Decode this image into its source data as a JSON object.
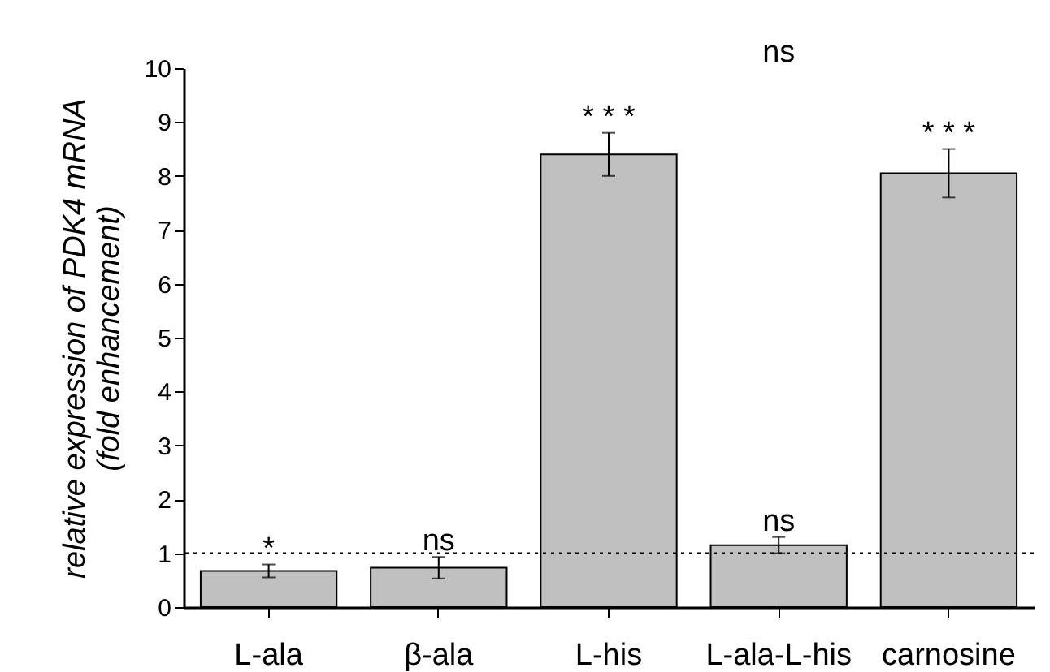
{
  "chart_data": {
    "type": "bar",
    "ylabel": "relative expression of PDK4 mRNA\n(fold enhancement)",
    "categories": [
      "L-ala",
      "β-ala",
      "L-his",
      "L-ala-L-his",
      "carnosine"
    ],
    "values": [
      0.67,
      0.73,
      8.4,
      1.15,
      8.05
    ],
    "errors": [
      [
        0.55,
        0.79
      ],
      [
        0.53,
        0.93
      ],
      [
        8.0,
        8.8
      ],
      [
        1.0,
        1.3
      ],
      [
        7.6,
        8.5
      ]
    ],
    "color": "#c0c0c0",
    "ylim": [
      0,
      10
    ],
    "yticks": [
      0,
      1,
      2,
      3,
      4,
      5,
      6,
      7,
      8,
      9,
      10
    ],
    "ref_lines": [
      {
        "axis": "y",
        "value": 1,
        "line_style": "dotted",
        "color": "#000000"
      }
    ],
    "annotations": [
      "*",
      "ns",
      "* * *",
      "ns",
      "* * *",
      "ns"
    ],
    "grid": false
  }
}
